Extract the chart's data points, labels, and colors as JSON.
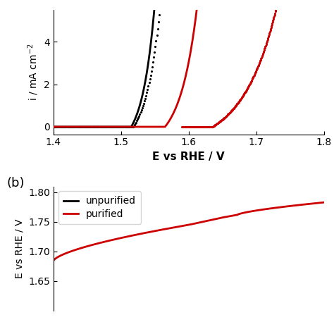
{
  "panel_a": {
    "xlabel": "E vs RHE / V",
    "ylabel": "i / mA cm⁻²",
    "xlim": [
      1.4,
      1.8
    ],
    "ylim": [
      -0.35,
      5.5
    ],
    "yticks": [
      0,
      2,
      4
    ],
    "xticks": [
      1.4,
      1.5,
      1.6,
      1.7,
      1.8
    ],
    "black_solid_onset": 1.515,
    "black_solid_steep": 55,
    "black_dot_onset": 1.518,
    "black_dot_steep": 48,
    "red_solid_onset": 1.565,
    "red_solid_steep": 40,
    "red_dot_onset": 1.635,
    "red_dot_steep": 20
  },
  "panel_b": {
    "ylabel": "E vs RHE / V",
    "xlim": [
      0,
      1
    ],
    "ylim": [
      1.6,
      1.81
    ],
    "yticks": [
      1.65,
      1.7,
      1.75,
      1.8
    ],
    "label_b": "(b)"
  },
  "legend": {
    "unpurified_label": "unpurified",
    "purified_label": "purified",
    "unpurified_color": "#000000",
    "purified_color": "#cc0000"
  },
  "colors": {
    "black": "#000000",
    "red": "#cc0000"
  }
}
